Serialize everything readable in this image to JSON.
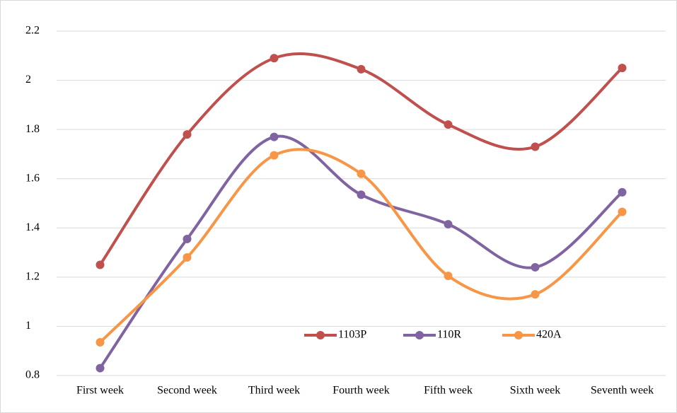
{
  "chart_data": {
    "type": "line",
    "categories": [
      "First week",
      "Second week",
      "Third week",
      "Fourth week",
      "Fifth week",
      "Sixth week",
      "Seventh week"
    ],
    "series": [
      {
        "name": "1103P",
        "color": "#c0504d",
        "values": [
          1.25,
          1.78,
          2.09,
          2.045,
          1.82,
          1.73,
          2.05
        ]
      },
      {
        "name": "110R",
        "color": "#8064a2",
        "values": [
          0.83,
          1.355,
          1.77,
          1.535,
          1.415,
          1.24,
          1.545
        ]
      },
      {
        "name": "420A",
        "color": "#f79646",
        "values": [
          0.935,
          1.28,
          1.695,
          1.62,
          1.205,
          1.13,
          1.465
        ]
      }
    ],
    "ylim": [
      0.8,
      2.2
    ],
    "yticks": [
      0.8,
      1,
      1.2,
      1.4,
      1.6,
      1.8,
      2,
      2.2
    ],
    "grid": true,
    "smooth": true,
    "legend": "bottom-right"
  }
}
